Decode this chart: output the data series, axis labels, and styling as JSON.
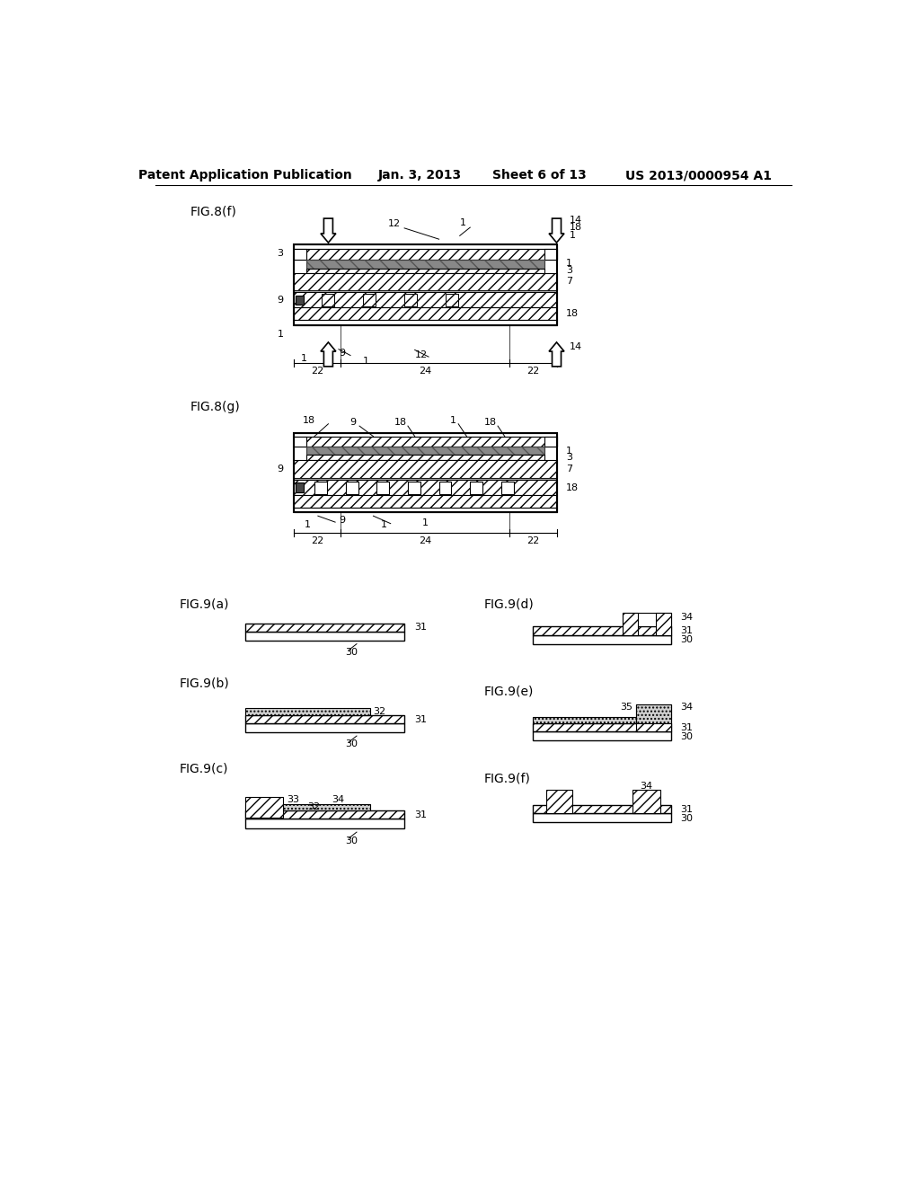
{
  "header_left": "Patent Application Publication",
  "header_mid": "Jan. 3, 2013",
  "header_sheet": "Sheet 6 of 13",
  "header_right": "US 2013/0000954 A1",
  "fig8f_label": "FIG.8(f)",
  "fig8g_label": "FIG.8(g)",
  "fig9a_label": "FIG.9(a)",
  "fig9b_label": "FIG.9(b)",
  "fig9c_label": "FIG.9(c)",
  "fig9d_label": "FIG.9(d)",
  "fig9e_label": "FIG.9(e)",
  "fig9f_label": "FIG.9(f)",
  "bg": "#ffffff"
}
